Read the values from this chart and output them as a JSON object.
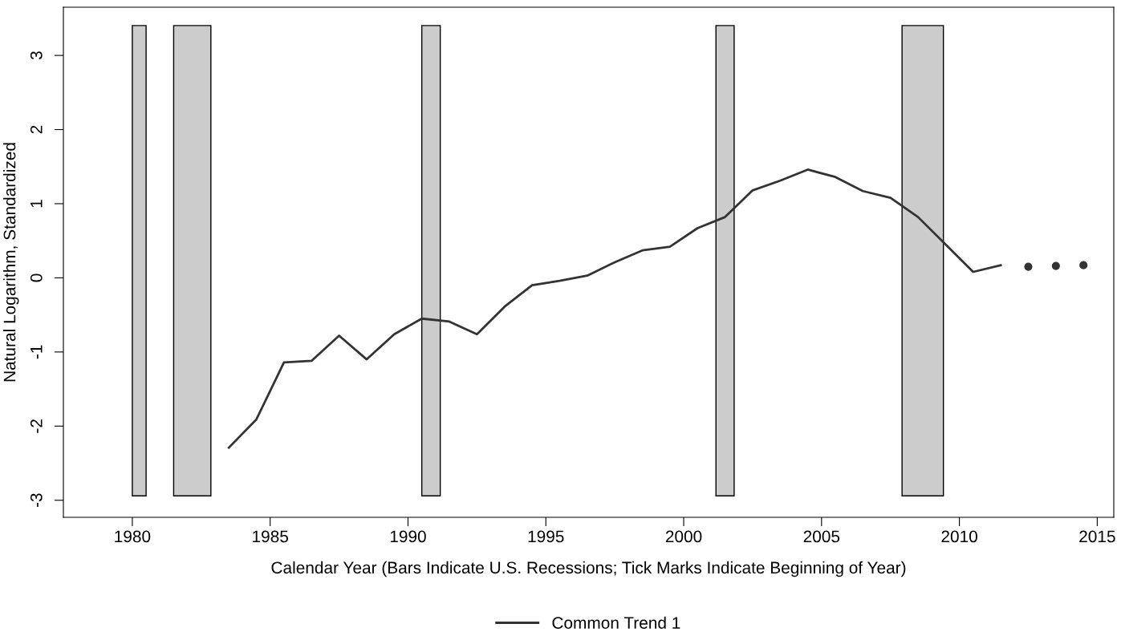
{
  "chart_data": {
    "type": "line",
    "xlabel": "Calendar Year (Bars Indicate U.S. Recessions; Tick Marks Indicate Beginning of Year)",
    "ylabel": "Natural Logarithm, Standardized",
    "series": [
      {
        "name": "Common Trend 1",
        "color": "#333333",
        "x": [
          1983.5,
          1984.5,
          1985.5,
          1986.5,
          1987.5,
          1988.5,
          1989.5,
          1990.5,
          1991.5,
          1992.5,
          1993.5,
          1994.5,
          1995.5,
          1996.5,
          1997.5,
          1998.5,
          1999.5,
          2000.5,
          2001.5,
          2002.5,
          2003.5,
          2004.5,
          2005.5,
          2006.5,
          2007.5,
          2008.5,
          2009.5,
          2010.5,
          2011.5
        ],
        "values": [
          -2.29,
          -1.91,
          -1.14,
          -1.12,
          -0.78,
          -1.1,
          -0.76,
          -0.55,
          -0.59,
          -0.76,
          -0.39,
          -0.1,
          -0.04,
          0.03,
          0.21,
          0.37,
          0.42,
          0.67,
          0.82,
          1.18,
          1.31,
          1.46,
          1.36,
          1.17,
          1.08,
          0.82,
          0.45,
          0.08,
          0.17
        ]
      },
      {
        "color": "#333333",
        "type": "scatter",
        "marker": "circle",
        "x": [
          2012.5,
          2013.5,
          2014.5
        ],
        "values": [
          0.15,
          0.16,
          0.17
        ]
      }
    ],
    "bands": [
      {
        "axis": "x",
        "from": 1980.0,
        "to": 1980.5,
        "color": "#cccccc"
      },
      {
        "axis": "x",
        "from": 1981.5,
        "to": 1982.85,
        "color": "#cccccc"
      },
      {
        "axis": "x",
        "from": 1990.5,
        "to": 1991.17,
        "color": "#cccccc"
      },
      {
        "axis": "x",
        "from": 2001.17,
        "to": 2001.83,
        "color": "#cccccc"
      },
      {
        "axis": "x",
        "from": 2007.92,
        "to": 2009.42,
        "color": "#cccccc"
      }
    ],
    "xlim": [
      1977.5,
      2015.6
    ],
    "ylim": [
      -3.23,
      3.65
    ],
    "xticks": [
      1980,
      1985,
      1990,
      1995,
      2000,
      2005,
      2010,
      2015
    ],
    "yticks": [
      -3,
      -2,
      -1,
      0,
      1,
      2,
      3
    ],
    "grid": false,
    "legend": "bottom"
  }
}
